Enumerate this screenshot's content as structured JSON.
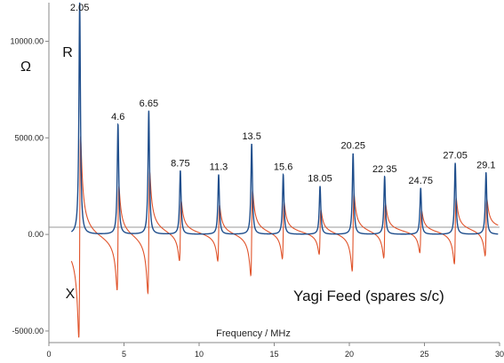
{
  "chart_data": {
    "type": "line",
    "title": "",
    "xlabel": "Frequency / MHz",
    "ylabel": "Ω",
    "xlim": [
      0,
      30
    ],
    "ylim": [
      -5600,
      12000
    ],
    "x_ticks": [
      "0",
      "5",
      "10",
      "15",
      "20",
      "25",
      "30"
    ],
    "y_ticks": [
      "10000.00",
      "5000.00",
      "0.00",
      "-5000.00"
    ],
    "grid": false,
    "annotation": "Yagi Feed (spares s/c)",
    "series": [
      {
        "name": "R",
        "color": "#1f4e8c"
      },
      {
        "name": "X",
        "color": "#e0532a"
      }
    ],
    "resonances": [
      {
        "label": "2.05",
        "x": 2.05,
        "r_peak": 12000,
        "x_max": 5000,
        "x_min": -5400
      },
      {
        "label": "4.6",
        "x": 4.6,
        "r_peak": 5700,
        "x_max": 2800,
        "x_min": -2600
      },
      {
        "label": "6.65",
        "x": 6.65,
        "r_peak": 6400,
        "x_max": 3100,
        "x_min": -3200
      },
      {
        "label": "8.75",
        "x": 8.75,
        "r_peak": 3300,
        "x_max": 1500,
        "x_min": -1600
      },
      {
        "label": "11.3",
        "x": 11.3,
        "r_peak": 3100,
        "x_max": 1400,
        "x_min": -1500
      },
      {
        "label": "13.5",
        "x": 13.5,
        "r_peak": 4700,
        "x_max": 2200,
        "x_min": -2200
      },
      {
        "label": "15.6",
        "x": 15.6,
        "r_peak": 3100,
        "x_max": 1400,
        "x_min": -1500
      },
      {
        "label": "18.05",
        "x": 18.05,
        "r_peak": 2500,
        "x_max": 1100,
        "x_min": -1200
      },
      {
        "label": "20.25",
        "x": 20.25,
        "r_peak": 4200,
        "x_max": 2000,
        "x_min": -2000
      },
      {
        "label": "22.35",
        "x": 22.35,
        "r_peak": 3000,
        "x_max": 1400,
        "x_min": -1400
      },
      {
        "label": "24.75",
        "x": 24.75,
        "r_peak": 2400,
        "x_max": 1100,
        "x_min": -1100
      },
      {
        "label": "27.05",
        "x": 27.05,
        "r_peak": 3700,
        "x_max": 1700,
        "x_min": -1700
      },
      {
        "label": "29.1",
        "x": 29.1,
        "r_peak": 3200,
        "x_max": 1400,
        "x_min": -1500
      }
    ]
  }
}
